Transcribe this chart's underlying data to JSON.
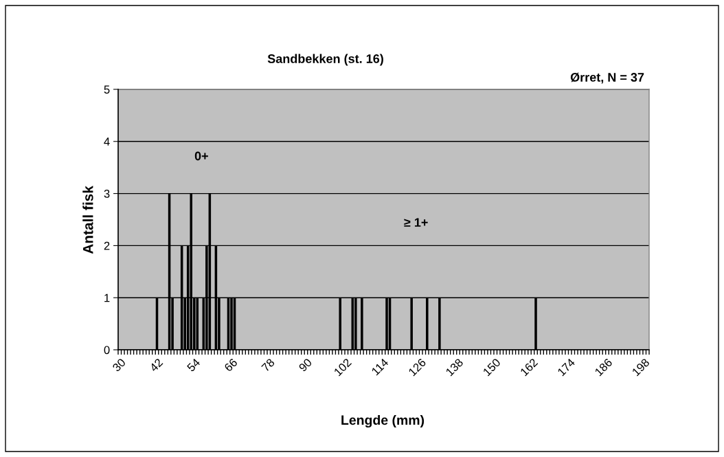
{
  "chart_data": {
    "type": "bar",
    "title": "Sandbekken (st. 16)",
    "subtitle": "Ørret, N = 37",
    "xlabel": "Lengde (mm)",
    "ylabel": "Antall fisk",
    "categories": [
      "30",
      null,
      null,
      null,
      null,
      null,
      null,
      null,
      null,
      null,
      null,
      null,
      "42",
      null,
      null,
      null,
      null,
      null,
      null,
      null,
      null,
      null,
      null,
      null,
      "54",
      null,
      null,
      null,
      null,
      null,
      null,
      null,
      null,
      null,
      null,
      null,
      "66",
      null,
      null,
      null,
      null,
      null,
      null,
      null,
      null,
      null,
      null,
      null,
      "78",
      null,
      null,
      null,
      null,
      null,
      null,
      null,
      null,
      null,
      null,
      null,
      "90",
      null,
      null,
      null,
      null,
      null,
      null,
      null,
      null,
      null,
      null,
      null,
      "102",
      null,
      null,
      null,
      null,
      null,
      null,
      null,
      null,
      null,
      null,
      null,
      "114",
      null,
      null,
      null,
      null,
      null,
      null,
      null,
      null,
      null,
      null,
      null,
      "126",
      null,
      null,
      null,
      null,
      null,
      null,
      null,
      null,
      null,
      null,
      null,
      "138",
      null,
      null,
      null,
      null,
      null,
      null,
      null,
      null,
      null,
      null,
      null,
      "150",
      null,
      null,
      null,
      null,
      null,
      null,
      null,
      null,
      null,
      null,
      null,
      "162",
      null,
      null,
      null,
      null,
      null,
      null,
      null,
      null,
      null,
      null,
      null,
      "174",
      null,
      null,
      null,
      null,
      null,
      null,
      null,
      null,
      null,
      null,
      null,
      "186",
      null,
      null,
      null,
      null,
      null,
      null,
      null,
      null,
      null,
      null,
      null,
      "198",
      null,
      null
    ],
    "values": [
      0,
      0,
      0,
      0,
      0,
      0,
      0,
      0,
      0,
      0,
      0,
      0,
      1,
      0,
      0,
      0,
      3,
      1,
      0,
      0,
      2,
      1,
      2,
      3,
      1,
      1,
      0,
      1,
      2,
      3,
      0,
      2,
      1,
      0,
      0,
      1,
      1,
      1,
      0,
      0,
      0,
      0,
      0,
      0,
      0,
      0,
      0,
      0,
      0,
      0,
      0,
      0,
      0,
      0,
      0,
      0,
      0,
      0,
      0,
      0,
      0,
      0,
      0,
      0,
      0,
      0,
      0,
      0,
      0,
      0,
      0,
      1,
      0,
      0,
      0,
      1,
      1,
      0,
      1,
      0,
      0,
      0,
      0,
      0,
      0,
      0,
      1,
      1,
      0,
      0,
      0,
      0,
      0,
      0,
      1,
      0,
      0,
      0,
      0,
      1,
      0,
      0,
      0,
      1,
      0,
      0,
      0,
      0,
      0,
      0,
      0,
      0,
      0,
      0,
      0,
      0,
      0,
      0,
      0,
      0,
      0,
      0,
      0,
      0,
      0,
      0,
      0,
      0,
      0,
      0,
      0,
      0,
      0,
      0,
      1,
      0,
      0,
      0,
      0,
      0,
      0,
      0,
      0,
      0,
      0,
      0,
      0,
      0,
      0,
      0,
      0,
      0,
      0,
      0,
      0,
      0,
      0,
      0,
      0,
      0,
      0,
      0,
      0,
      0,
      0,
      0,
      0,
      0,
      0,
      0,
      0
    ],
    "color": "#000000",
    "ylim": [
      0,
      5
    ],
    "yticks": [
      0,
      1,
      2,
      3,
      4,
      5
    ],
    "grid": "y",
    "annotations": [
      "0+",
      "≥ 1+"
    ]
  }
}
